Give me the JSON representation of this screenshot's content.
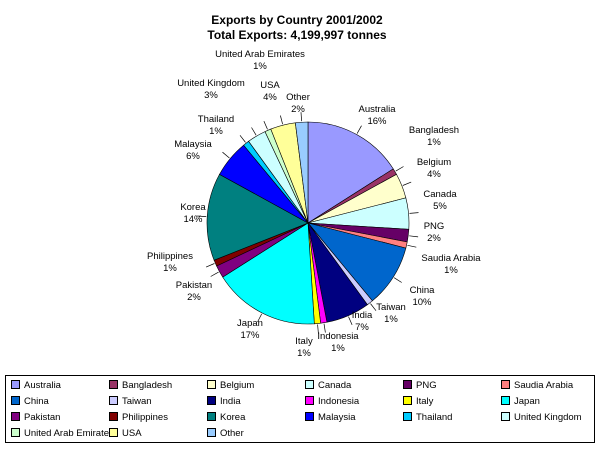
{
  "chart_data": {
    "type": "pie",
    "title": "Exports by Country 2001/2002",
    "subtitle": "Total Exports: 4,199,997 tonnes",
    "slices": [
      {
        "name": "Australia",
        "value": 16,
        "label": "16%",
        "color": "#9999ff"
      },
      {
        "name": "Bangladesh",
        "value": 1,
        "label": "1%",
        "color": "#993366"
      },
      {
        "name": "Belgium",
        "value": 4,
        "label": "4%",
        "color": "#ffffcc"
      },
      {
        "name": "Canada",
        "value": 5,
        "label": "5%",
        "color": "#ccffff"
      },
      {
        "name": "PNG",
        "value": 2,
        "label": "2%",
        "color": "#660066"
      },
      {
        "name": "Saudia Arabia",
        "value": 1,
        "label": "1%",
        "color": "#ff8080"
      },
      {
        "name": "China",
        "value": 10,
        "label": "10%",
        "color": "#0066cc"
      },
      {
        "name": "Taiwan",
        "value": 1,
        "label": "1%",
        "color": "#ccccff"
      },
      {
        "name": "India",
        "value": 7,
        "label": "7%",
        "color": "#000080"
      },
      {
        "name": "Indonesia",
        "value": 1,
        "label": "1%",
        "color": "#ff00ff"
      },
      {
        "name": "Italy",
        "value": 1,
        "label": "1%",
        "color": "#ffff00"
      },
      {
        "name": "Japan",
        "value": 17,
        "label": "17%",
        "color": "#00ffff"
      },
      {
        "name": "Pakistan",
        "value": 2,
        "label": "2%",
        "color": "#800080"
      },
      {
        "name": "Philippines",
        "value": 1,
        "label": "1%",
        "color": "#800000"
      },
      {
        "name": "Korea",
        "value": 14,
        "label": "14%",
        "color": "#008080"
      },
      {
        "name": "Malaysia",
        "value": 6,
        "label": "6%",
        "color": "#0000ff"
      },
      {
        "name": "Thailand",
        "value": 1,
        "label": "1%",
        "color": "#00ccff"
      },
      {
        "name": "United Kingdom",
        "value": 3,
        "label": "3%",
        "color": "#ccffff"
      },
      {
        "name": "United Arab Emirates",
        "value": 1,
        "label": "1%",
        "color": "#ccffcc"
      },
      {
        "name": "USA",
        "value": 4,
        "label": "4%",
        "color": "#ffff99"
      },
      {
        "name": "Other",
        "value": 2,
        "label": "2%",
        "color": "#99ccff"
      }
    ],
    "legend_position": "bottom"
  }
}
